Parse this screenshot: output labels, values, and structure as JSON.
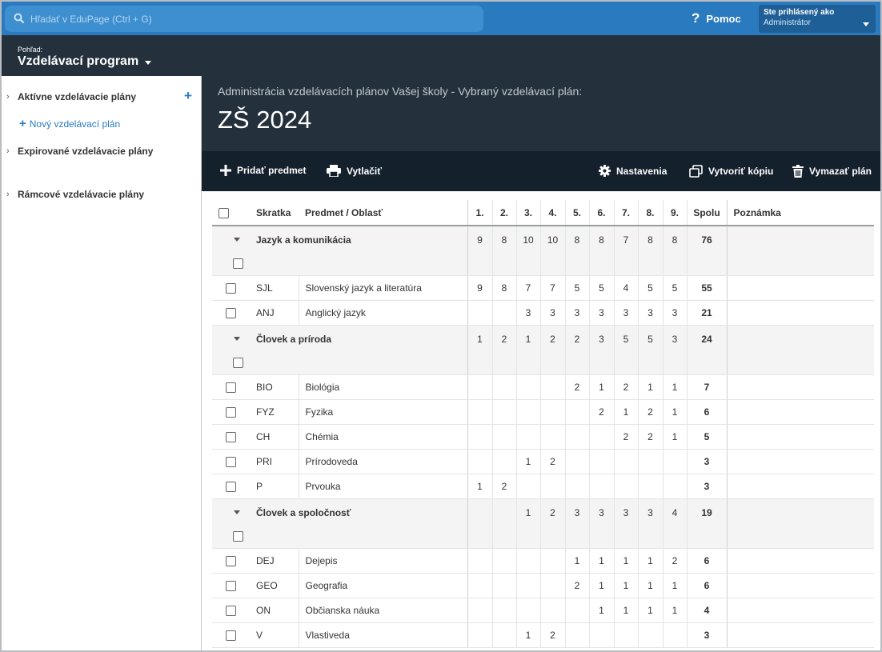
{
  "topbar": {
    "search_placeholder": "Hľadať v EduPage (Ctrl + G)",
    "help_label": "Pomoc",
    "help_icon": "?",
    "user_line1": "Ste prihlásený ako",
    "user_line2": "Administrátor"
  },
  "viewbar": {
    "small_label": "Pohľad:",
    "title": "Vzdelávací program"
  },
  "sidebar": {
    "active_label": "Aktívne vzdelávacie plány",
    "new_label": "Nový vzdelávací plán",
    "expired_label": "Expirované vzdelávacie plány",
    "frame_label": "Rámcové vzdelávacie plány"
  },
  "main": {
    "subtitle": "Administrácia vzdelávacích plánov Vašej školy - Vybraný vzdelávací plán:",
    "title": "ZŠ 2024"
  },
  "toolbar": {
    "add": "Pridať predmet",
    "print": "Vytlačiť",
    "settings": "Nastavenia",
    "copy": "Vytvoriť kópiu",
    "delete": "Vymazať plán"
  },
  "table": {
    "headers": {
      "abbr": "Skratka",
      "name": "Predmet / Oblasť",
      "grades": [
        "1.",
        "2.",
        "3.",
        "4.",
        "5.",
        "6.",
        "7.",
        "8.",
        "9."
      ],
      "sum": "Spolu",
      "note": "Poznámka"
    },
    "rows": [
      {
        "type": "group",
        "name": "Jazyk a komunikácia",
        "v": [
          "9",
          "8",
          "10",
          "10",
          "8",
          "8",
          "7",
          "8",
          "8"
        ],
        "sum": "76"
      },
      {
        "type": "subject",
        "abbr": "SJL",
        "name": "Slovenský jazyk a literatúra",
        "v": [
          "9",
          "8",
          "7",
          "7",
          "5",
          "5",
          "4",
          "5",
          "5"
        ],
        "sum": "55"
      },
      {
        "type": "subject",
        "abbr": "ANJ",
        "name": "Anglický jazyk",
        "v": [
          "",
          "",
          "3",
          "3",
          "3",
          "3",
          "3",
          "3",
          "3"
        ],
        "sum": "21"
      },
      {
        "type": "group",
        "name": "Človek a príroda",
        "v": [
          "1",
          "2",
          "1",
          "2",
          "2",
          "3",
          "5",
          "5",
          "3"
        ],
        "sum": "24"
      },
      {
        "type": "subject",
        "abbr": "BIO",
        "name": "Biológia",
        "v": [
          "",
          "",
          "",
          "",
          "2",
          "1",
          "2",
          "1",
          "1"
        ],
        "sum": "7"
      },
      {
        "type": "subject",
        "abbr": "FYZ",
        "name": "Fyzika",
        "v": [
          "",
          "",
          "",
          "",
          "",
          "2",
          "1",
          "2",
          "1"
        ],
        "sum": "6"
      },
      {
        "type": "subject",
        "abbr": "CH",
        "name": "Chémia",
        "v": [
          "",
          "",
          "",
          "",
          "",
          "",
          "2",
          "2",
          "1"
        ],
        "sum": "5"
      },
      {
        "type": "subject",
        "abbr": "PRI",
        "name": "Prírodoveda",
        "v": [
          "",
          "",
          "1",
          "2",
          "",
          "",
          "",
          "",
          ""
        ],
        "sum": "3"
      },
      {
        "type": "subject",
        "abbr": "P",
        "name": "Prvouka",
        "v": [
          "1",
          "2",
          "",
          "",
          "",
          "",
          "",
          "",
          ""
        ],
        "sum": "3"
      },
      {
        "type": "group",
        "name": "Človek a spoločnosť",
        "v": [
          "",
          "",
          "1",
          "2",
          "3",
          "3",
          "3",
          "3",
          "4"
        ],
        "sum": "19"
      },
      {
        "type": "subject",
        "abbr": "DEJ",
        "name": "Dejepis",
        "v": [
          "",
          "",
          "",
          "",
          "1",
          "1",
          "1",
          "1",
          "2"
        ],
        "sum": "6"
      },
      {
        "type": "subject",
        "abbr": "GEO",
        "name": "Geografia",
        "v": [
          "",
          "",
          "",
          "",
          "2",
          "1",
          "1",
          "1",
          "1"
        ],
        "sum": "6"
      },
      {
        "type": "subject",
        "abbr": "ON",
        "name": "Občianska náuka",
        "v": [
          "",
          "",
          "",
          "",
          "",
          "1",
          "1",
          "1",
          "1"
        ],
        "sum": "4"
      },
      {
        "type": "subject",
        "abbr": "V",
        "name": "Vlastiveda",
        "v": [
          "",
          "",
          "1",
          "2",
          "",
          "",
          "",
          "",
          ""
        ],
        "sum": "3"
      }
    ]
  },
  "colors": {
    "topbar": "#2a7ac0",
    "header_dark": "#24313d",
    "toolbar_dark": "#14202c",
    "accent": "#2a7ac0"
  }
}
